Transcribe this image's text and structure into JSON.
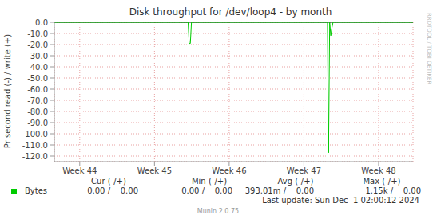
{
  "chart_data": {
    "type": "line",
    "title": "Disk throughput for /dev/loop4 - by month",
    "y_label": "Pr second read (-) / write (+)",
    "x": [
      43.66,
      45.45,
      45.465,
      45.48,
      45.495,
      47.315,
      47.33,
      47.345,
      47.36,
      47.375,
      47.39,
      48.46
    ],
    "series": [
      {
        "name": "Bytes",
        "color": "#00cc00",
        "values": [
          0,
          0,
          -19,
          -19,
          0,
          0,
          -117,
          0,
          -12,
          -5,
          0,
          0
        ]
      }
    ],
    "xlim": [
      43.66,
      48.46
    ],
    "xticks": [
      {
        "value": 44,
        "label": "Week 44"
      },
      {
        "value": 45,
        "label": "Week 45"
      },
      {
        "value": 46,
        "label": "Week 46"
      },
      {
        "value": 47,
        "label": "Week 47"
      },
      {
        "value": 48,
        "label": "Week 48"
      }
    ],
    "ylim": [
      -125,
      0
    ],
    "yticks": [
      {
        "value": 0,
        "label": "0.0"
      },
      {
        "value": -10,
        "label": "-10.0"
      },
      {
        "value": -20,
        "label": "-20.0"
      },
      {
        "value": -30,
        "label": "-30.0"
      },
      {
        "value": -40,
        "label": "-40.0"
      },
      {
        "value": -50,
        "label": "-50.0"
      },
      {
        "value": -60,
        "label": "-60.0"
      },
      {
        "value": -70,
        "label": "-70.0"
      },
      {
        "value": -80,
        "label": "-80.0"
      },
      {
        "value": -90,
        "label": "-90.0"
      },
      {
        "value": -100,
        "label": "-100.0"
      },
      {
        "value": -110,
        "label": "-110.0"
      },
      {
        "value": -120,
        "label": "-120.0"
      }
    ],
    "grid": true,
    "legend_table": {
      "headers": [
        "Cur (-/+)",
        "Min (-/+)",
        "Avg (-/+)",
        "Max (-/+)"
      ],
      "rows": [
        {
          "name": "Bytes",
          "cells": [
            "0.00 /    0.00",
            "0.00 /    0.00",
            "393.01m /    0.00",
            "1.15k /    0.00"
          ]
        }
      ]
    },
    "last_update": "Last update: Sun Dec  1 02:00:12 2024",
    "credit": "Munin 2.0.75",
    "watermark": "RRDTOOL / TOBI OETIKER"
  }
}
